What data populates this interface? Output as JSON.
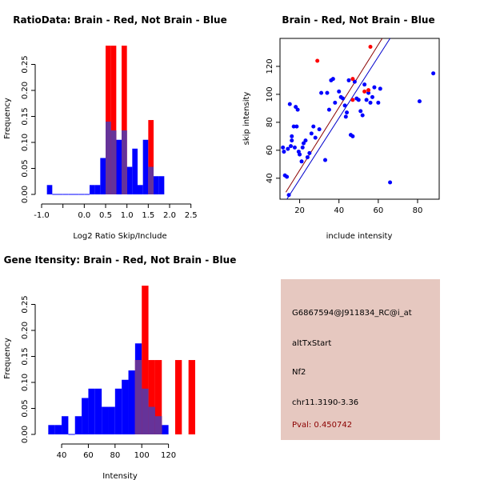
{
  "colors": {
    "red": "#ff0000",
    "blue": "#0000ff",
    "overlap": "#663399",
    "panel_bg": "#e6c8c0",
    "pval": "#8b0000",
    "red_line": "#8b0000",
    "blue_line": "#0000cc"
  },
  "info": {
    "probe": "G6867594@J911834_RC@i_at",
    "event": "altTxStart",
    "gene": "Nf2",
    "location": "chr11.3190-3.36",
    "pval": "Pval: 0.450742"
  },
  "chart_data": [
    {
      "id": "ratio",
      "type": "bar",
      "title": "RatioData: Brain - Red, Not Brain - Blue",
      "xlabel": "Log2 Ratio Skip/Include",
      "ylabel": "Frequency",
      "xlim": [
        -1.0,
        2.6
      ],
      "ylim": [
        0,
        0.3
      ],
      "bin_width": 0.125,
      "xticks": [
        -1.0,
        -0.5,
        0.0,
        0.5,
        1.0,
        1.5,
        2.0,
        2.5
      ],
      "xtick_labels": [
        "-1.0",
        "",
        "0.0",
        "0.5",
        "1.0",
        "1.5",
        "2.0",
        "2.5"
      ],
      "yticks": [
        0.0,
        0.05,
        0.1,
        0.15,
        0.2,
        0.25
      ],
      "ytick_labels": [
        "0.00",
        "0.05",
        "0.10",
        "0.15",
        "0.20",
        "0.25"
      ],
      "series": [
        {
          "name": "Not Brain",
          "color": "blue",
          "bins": [
            {
              "x0": -0.875,
              "h": 0.018
            },
            {
              "x0": -0.75,
              "h": 0.0
            },
            {
              "x0": -0.625,
              "h": 0.0
            },
            {
              "x0": -0.5,
              "h": 0.0
            },
            {
              "x0": -0.375,
              "h": 0.0
            },
            {
              "x0": -0.25,
              "h": 0.0
            },
            {
              "x0": -0.125,
              "h": 0.0
            },
            {
              "x0": 0.0,
              "h": 0.0
            },
            {
              "x0": 0.125,
              "h": 0.018
            },
            {
              "x0": 0.25,
              "h": 0.018
            },
            {
              "x0": 0.375,
              "h": 0.07
            },
            {
              "x0": 0.5,
              "h": 0.14
            },
            {
              "x0": 0.625,
              "h": 0.123
            },
            {
              "x0": 0.75,
              "h": 0.105
            },
            {
              "x0": 0.875,
              "h": 0.123
            },
            {
              "x0": 1.0,
              "h": 0.053
            },
            {
              "x0": 1.125,
              "h": 0.088
            },
            {
              "x0": 1.25,
              "h": 0.018
            },
            {
              "x0": 1.375,
              "h": 0.105
            },
            {
              "x0": 1.5,
              "h": 0.053
            },
            {
              "x0": 1.625,
              "h": 0.035
            },
            {
              "x0": 1.75,
              "h": 0.035
            }
          ]
        },
        {
          "name": "Brain",
          "color": "red",
          "bins": [
            {
              "x0": 0.5,
              "h": 0.286
            },
            {
              "x0": 0.625,
              "h": 0.286
            },
            {
              "x0": 0.875,
              "h": 0.286
            },
            {
              "x0": 1.5,
              "h": 0.143
            }
          ]
        }
      ]
    },
    {
      "id": "scatter",
      "type": "scatter",
      "title": "Brain - Red, Not Brain - Blue",
      "xlabel": "include intensity",
      "ylabel": "skip intensity",
      "xlim": [
        10,
        91
      ],
      "ylim": [
        25,
        140
      ],
      "xticks": [
        20,
        40,
        60,
        80
      ],
      "yticks": [
        40,
        60,
        80,
        100,
        120
      ],
      "series": [
        {
          "name": "Not Brain",
          "color": "blue",
          "points": [
            [
              11.5,
              62
            ],
            [
              12,
              59
            ],
            [
              12.5,
              42
            ],
            [
              13.5,
              41
            ],
            [
              14,
              61
            ],
            [
              14.5,
              28
            ],
            [
              15,
              93
            ],
            [
              15.5,
              63
            ],
            [
              16,
              67
            ],
            [
              16,
              70
            ],
            [
              17,
              77
            ],
            [
              17.5,
              62
            ],
            [
              18,
              91
            ],
            [
              18.5,
              77
            ],
            [
              19,
              89
            ],
            [
              19.5,
              59
            ],
            [
              20,
              57
            ],
            [
              21,
              52
            ],
            [
              21.5,
              62
            ],
            [
              22,
              65
            ],
            [
              23,
              67
            ],
            [
              24,
              55
            ],
            [
              25,
              58
            ],
            [
              26,
              72
            ],
            [
              27,
              77
            ],
            [
              28,
              69
            ],
            [
              30,
              75
            ],
            [
              31,
              101
            ],
            [
              33,
              53
            ],
            [
              34,
              101
            ],
            [
              35,
              89
            ],
            [
              36,
              110
            ],
            [
              37,
              111
            ],
            [
              38,
              94
            ],
            [
              40,
              102
            ],
            [
              41,
              98
            ],
            [
              42,
              97
            ],
            [
              43,
              92
            ],
            [
              43.5,
              84
            ],
            [
              44,
              87
            ],
            [
              45,
              110
            ],
            [
              46,
              71
            ],
            [
              47,
              70
            ],
            [
              48,
              109
            ],
            [
              49,
              97
            ],
            [
              50,
              96
            ],
            [
              51,
              88
            ],
            [
              52,
              85
            ],
            [
              53,
              107
            ],
            [
              54,
              96
            ],
            [
              55,
              101
            ],
            [
              56,
              94
            ],
            [
              57,
              98
            ],
            [
              58,
              105
            ],
            [
              60,
              94
            ],
            [
              61,
              104
            ],
            [
              66,
              37
            ],
            [
              81,
              95
            ],
            [
              88,
              115
            ]
          ]
        },
        {
          "name": "Brain",
          "color": "red",
          "points": [
            [
              29,
              124
            ],
            [
              47,
              111
            ],
            [
              47,
              96
            ],
            [
              53,
              102
            ],
            [
              55,
              103
            ],
            [
              56,
              134
            ]
          ]
        }
      ],
      "fit_lines": [
        {
          "name": "Brain fit",
          "color": "red_line",
          "x": [
            13,
            62
          ],
          "y": [
            30,
            140
          ]
        },
        {
          "name": "Not Brain fit",
          "color": "blue_line",
          "x": [
            13.5,
            66
          ],
          "y": [
            25,
            140
          ]
        }
      ]
    },
    {
      "id": "gene",
      "type": "bar",
      "title": "Gene Itensity: Brain - Red, Not Brain - Blue",
      "xlabel": "Intensity",
      "ylabel": "Frequency",
      "xlim": [
        25,
        140
      ],
      "ylim": [
        0,
        0.3
      ],
      "bin_width": 5,
      "xticks": [
        40,
        60,
        80,
        100,
        120
      ],
      "xtick_labels": [
        "40",
        "60",
        "80",
        "100",
        "120"
      ],
      "yticks": [
        0.0,
        0.05,
        0.1,
        0.15,
        0.2,
        0.25
      ],
      "ytick_labels": [
        "0.00",
        "0.05",
        "0.10",
        "0.15",
        "0.20",
        "0.25"
      ],
      "series": [
        {
          "name": "Not Brain",
          "color": "blue",
          "bins": [
            {
              "x0": 30,
              "h": 0.018
            },
            {
              "x0": 35,
              "h": 0.018
            },
            {
              "x0": 40,
              "h": 0.035
            },
            {
              "x0": 45,
              "h": 0.0
            },
            {
              "x0": 50,
              "h": 0.035
            },
            {
              "x0": 55,
              "h": 0.07
            },
            {
              "x0": 60,
              "h": 0.088
            },
            {
              "x0": 65,
              "h": 0.088
            },
            {
              "x0": 70,
              "h": 0.053
            },
            {
              "x0": 75,
              "h": 0.053
            },
            {
              "x0": 80,
              "h": 0.088
            },
            {
              "x0": 85,
              "h": 0.105
            },
            {
              "x0": 90,
              "h": 0.123
            },
            {
              "x0": 95,
              "h": 0.175
            },
            {
              "x0": 100,
              "h": 0.088
            },
            {
              "x0": 105,
              "h": 0.053
            },
            {
              "x0": 110,
              "h": 0.035
            },
            {
              "x0": 115,
              "h": 0.018
            }
          ]
        },
        {
          "name": "Brain",
          "color": "red",
          "bins": [
            {
              "x0": 95,
              "h": 0.143
            },
            {
              "x0": 100,
              "h": 0.286
            },
            {
              "x0": 105,
              "h": 0.143
            },
            {
              "x0": 110,
              "h": 0.143
            },
            {
              "x0": 125,
              "h": 0.143
            },
            {
              "x0": 135,
              "h": 0.143
            }
          ]
        }
      ]
    }
  ]
}
